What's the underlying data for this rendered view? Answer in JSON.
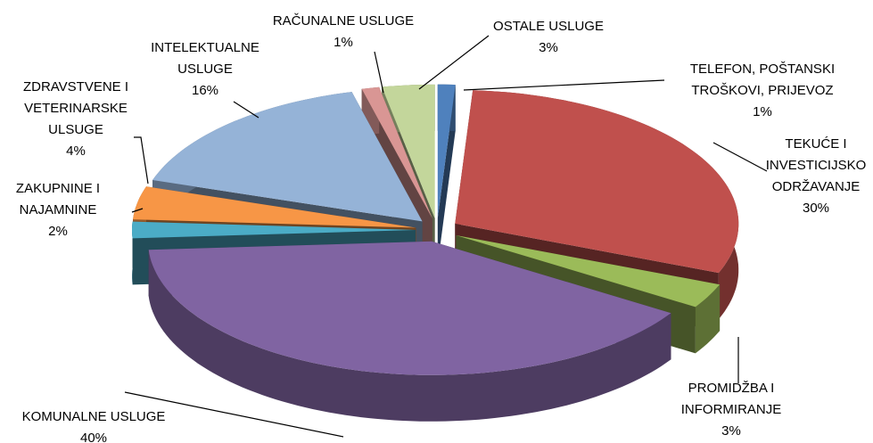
{
  "chart_data": {
    "type": "pie3d",
    "categories": [
      "TELEFON, POŠTANSKI TROŠKOVI, PRIJEVOZ",
      "TEKUĆE I INVESTICIJSKO ODRŽAVANJE",
      "PROMIDŽBA I INFORMIRANJE",
      "KOMUNALNE USLUGE",
      "ZAKUPNINE I NAJAMNINE",
      "ZDRAVSTVENE I VETERINARSKE ULSUGE",
      "INTELEKTUALNE USLUGE",
      "RAČUNALNE USLUGE",
      "OSTALE USLUGE"
    ],
    "values": [
      1,
      30,
      3,
      40,
      2,
      4,
      16,
      1,
      3
    ],
    "value_labels": [
      "1%",
      "30%",
      "3%",
      "40%",
      "2%",
      "4%",
      "16%",
      "1%",
      "3%"
    ],
    "colors": [
      "#4f81bd",
      "#c0504d",
      "#9bbb59",
      "#8064a2",
      "#4bacc6",
      "#f79646",
      "#95b3d7",
      "#d99694",
      "#c3d69b"
    ]
  }
}
